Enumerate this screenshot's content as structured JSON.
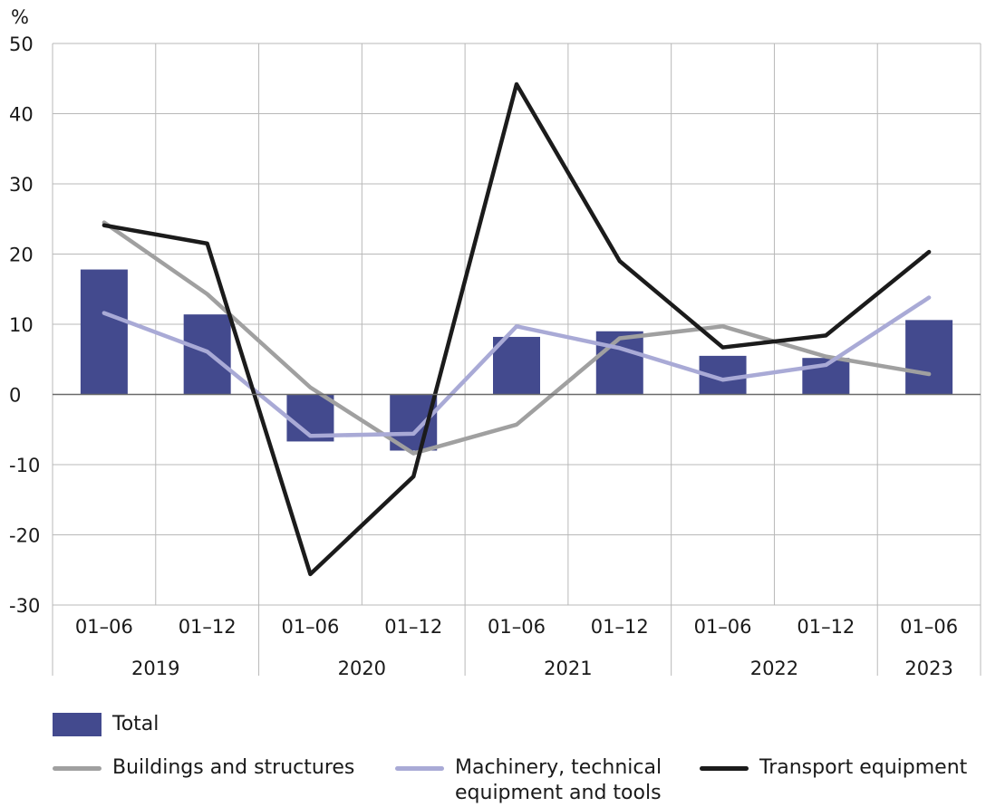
{
  "colors": {
    "total": "#434a8e",
    "buildings": "#a0a0a0",
    "machinery": "#a9aad6",
    "transport": "#1b1b1b",
    "grid": "#b8b8b8"
  },
  "chart_data": {
    "type": "bar+line",
    "ylabel": "%",
    "ylim": [
      -30,
      50
    ],
    "yticks": [
      50,
      40,
      30,
      20,
      10,
      0,
      -10,
      -20,
      -30
    ],
    "grid": true,
    "categories": [
      "01–06",
      "01–12",
      "01–06",
      "01–12",
      "01–06",
      "01–12",
      "01–06",
      "01–12",
      "01–06"
    ],
    "years": [
      {
        "label": "2019",
        "span": 2
      },
      {
        "label": "2020",
        "span": 2
      },
      {
        "label": "2021",
        "span": 2
      },
      {
        "label": "2022",
        "span": 2
      },
      {
        "label": "2023",
        "span": 1
      }
    ],
    "bar_series": {
      "name": "Total",
      "values": [
        17.8,
        11.4,
        -6.7,
        -8.0,
        8.2,
        9.0,
        5.5,
        5.2,
        10.6
      ]
    },
    "line_series": [
      {
        "name": "Buildings and structures",
        "key": "buildings",
        "values": [
          24.5,
          14.3,
          1.0,
          -8.4,
          -4.3,
          8.0,
          9.7,
          5.4,
          2.9
        ]
      },
      {
        "name": "Machinery, technical equipment and tools",
        "key": "machinery",
        "values": [
          11.6,
          6.1,
          -5.9,
          -5.6,
          9.7,
          6.6,
          2.1,
          4.2,
          13.8
        ]
      },
      {
        "name": "Transport equipment",
        "key": "transport",
        "values": [
          24.1,
          21.5,
          -25.6,
          -11.7,
          44.2,
          19.0,
          6.7,
          8.4,
          20.3
        ]
      }
    ],
    "legend_position": "bottom"
  },
  "legend": {
    "total": "Total",
    "buildings": "Buildings and structures",
    "machinery_line1": "Machinery, technical",
    "machinery_line2": "equipment and tools",
    "transport": "Transport equipment"
  }
}
